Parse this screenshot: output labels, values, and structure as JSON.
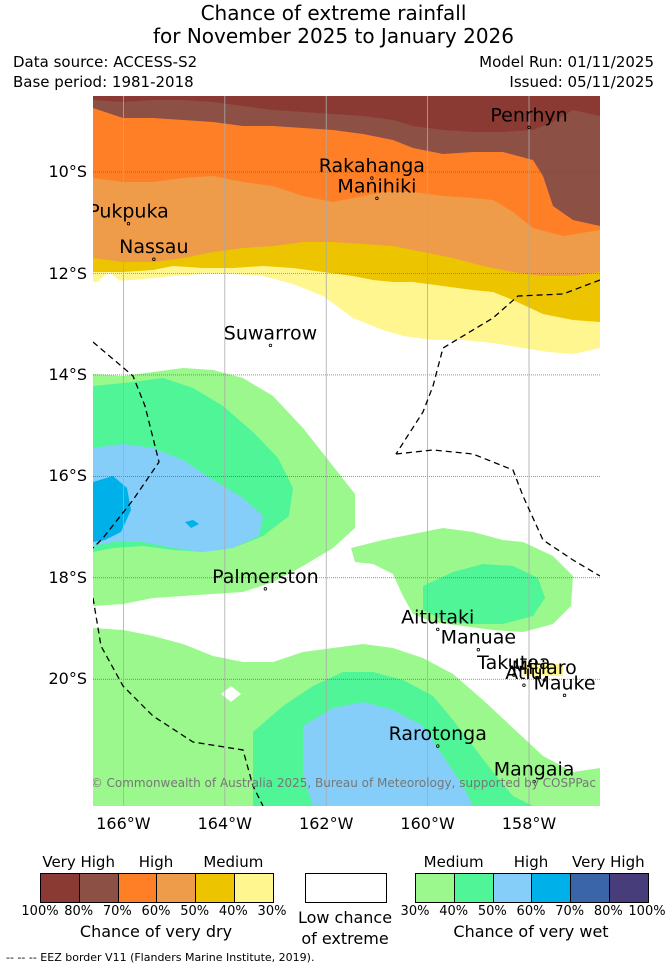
{
  "title": {
    "line1": "Chance of extreme rainfall",
    "line2": "for November 2025 to January 2026"
  },
  "meta": {
    "data_source": "Data source: ACCESS-S2",
    "base_period": "Base period: 1981-2018",
    "model_run": "Model Run: 01/11/2025",
    "issued": "Issued: 05/11/2025"
  },
  "map": {
    "lon_range": [
      -166.6,
      -156.6
    ],
    "lat_range": [
      -22.5,
      -8.5
    ],
    "lat_ticks": [
      {
        "label": "10°S",
        "lat": -10
      },
      {
        "label": "12°S",
        "lat": -12
      },
      {
        "label": "14°S",
        "lat": -14
      },
      {
        "label": "16°S",
        "lat": -16
      },
      {
        "label": "18°S",
        "lat": -18
      },
      {
        "label": "20°S",
        "lat": -20
      }
    ],
    "lon_ticks": [
      {
        "label": "166°W",
        "lon": -166
      },
      {
        "label": "164°W",
        "lon": -164
      },
      {
        "label": "162°W",
        "lon": -162
      },
      {
        "label": "160°W",
        "lon": -160
      },
      {
        "label": "158°W",
        "lon": -158
      }
    ],
    "places": [
      {
        "name": "Penrhyn",
        "lon": -158.0,
        "lat": -9.0
      },
      {
        "name": "Rakahanga",
        "lon": -161.1,
        "lat": -10.0
      },
      {
        "name": "Manihiki",
        "lon": -161.0,
        "lat": -10.4
      },
      {
        "name": "Pukpuka",
        "lon": -165.9,
        "lat": -10.9
      },
      {
        "name": "Nassau",
        "lon": -165.4,
        "lat": -11.6
      },
      {
        "name": "Suwarrow",
        "lon": -163.1,
        "lat": -13.3
      },
      {
        "name": "Palmerston",
        "lon": -163.2,
        "lat": -18.1
      },
      {
        "name": "Aitutaki",
        "lon": -159.8,
        "lat": -18.9
      },
      {
        "name": "Manuae",
        "lon": -159.0,
        "lat": -19.3
      },
      {
        "name": "Takutea",
        "lon": -158.3,
        "lat": -19.8
      },
      {
        "name": "Mitiaro",
        "lon": -157.7,
        "lat": -19.9
      },
      {
        "name": "Atiu",
        "lon": -158.1,
        "lat": -20.0
      },
      {
        "name": "Mauke",
        "lon": -157.3,
        "lat": -20.2
      },
      {
        "name": "Rarotonga",
        "lon": -159.8,
        "lat": -21.2
      },
      {
        "name": "Mangaia",
        "lon": -157.9,
        "lat": -21.9
      }
    ],
    "copyright": "© Commonwealth of Australia 2025, Bureau of Meteorology, supported by COSPPac"
  },
  "legend": {
    "dry": {
      "categories": [
        "Very High",
        "High",
        "Medium"
      ],
      "colors": [
        "#8B3A33",
        "#8C5045",
        "#FF7F27",
        "#EE9B4A",
        "#ECC400",
        "#FFF68F"
      ],
      "ticks": [
        "100%",
        "80%",
        "70%",
        "60%",
        "50%",
        "40%",
        "30%"
      ],
      "caption": "Chance of very dry"
    },
    "low": {
      "line1": "Low chance",
      "line2": "of extreme"
    },
    "wet": {
      "categories": [
        "Medium",
        "High",
        "Very High"
      ],
      "colors": [
        "#9BF88D",
        "#50F598",
        "#86CEFA",
        "#00B0E9",
        "#3A65A8",
        "#473D7A"
      ],
      "ticks": [
        "30%",
        "40%",
        "50%",
        "60%",
        "70%",
        "80%",
        "100%"
      ],
      "caption": "Chance of very wet"
    }
  },
  "footer": "--  --  -- EEZ border V11 (Flanders Marine Institute, 2019)."
}
